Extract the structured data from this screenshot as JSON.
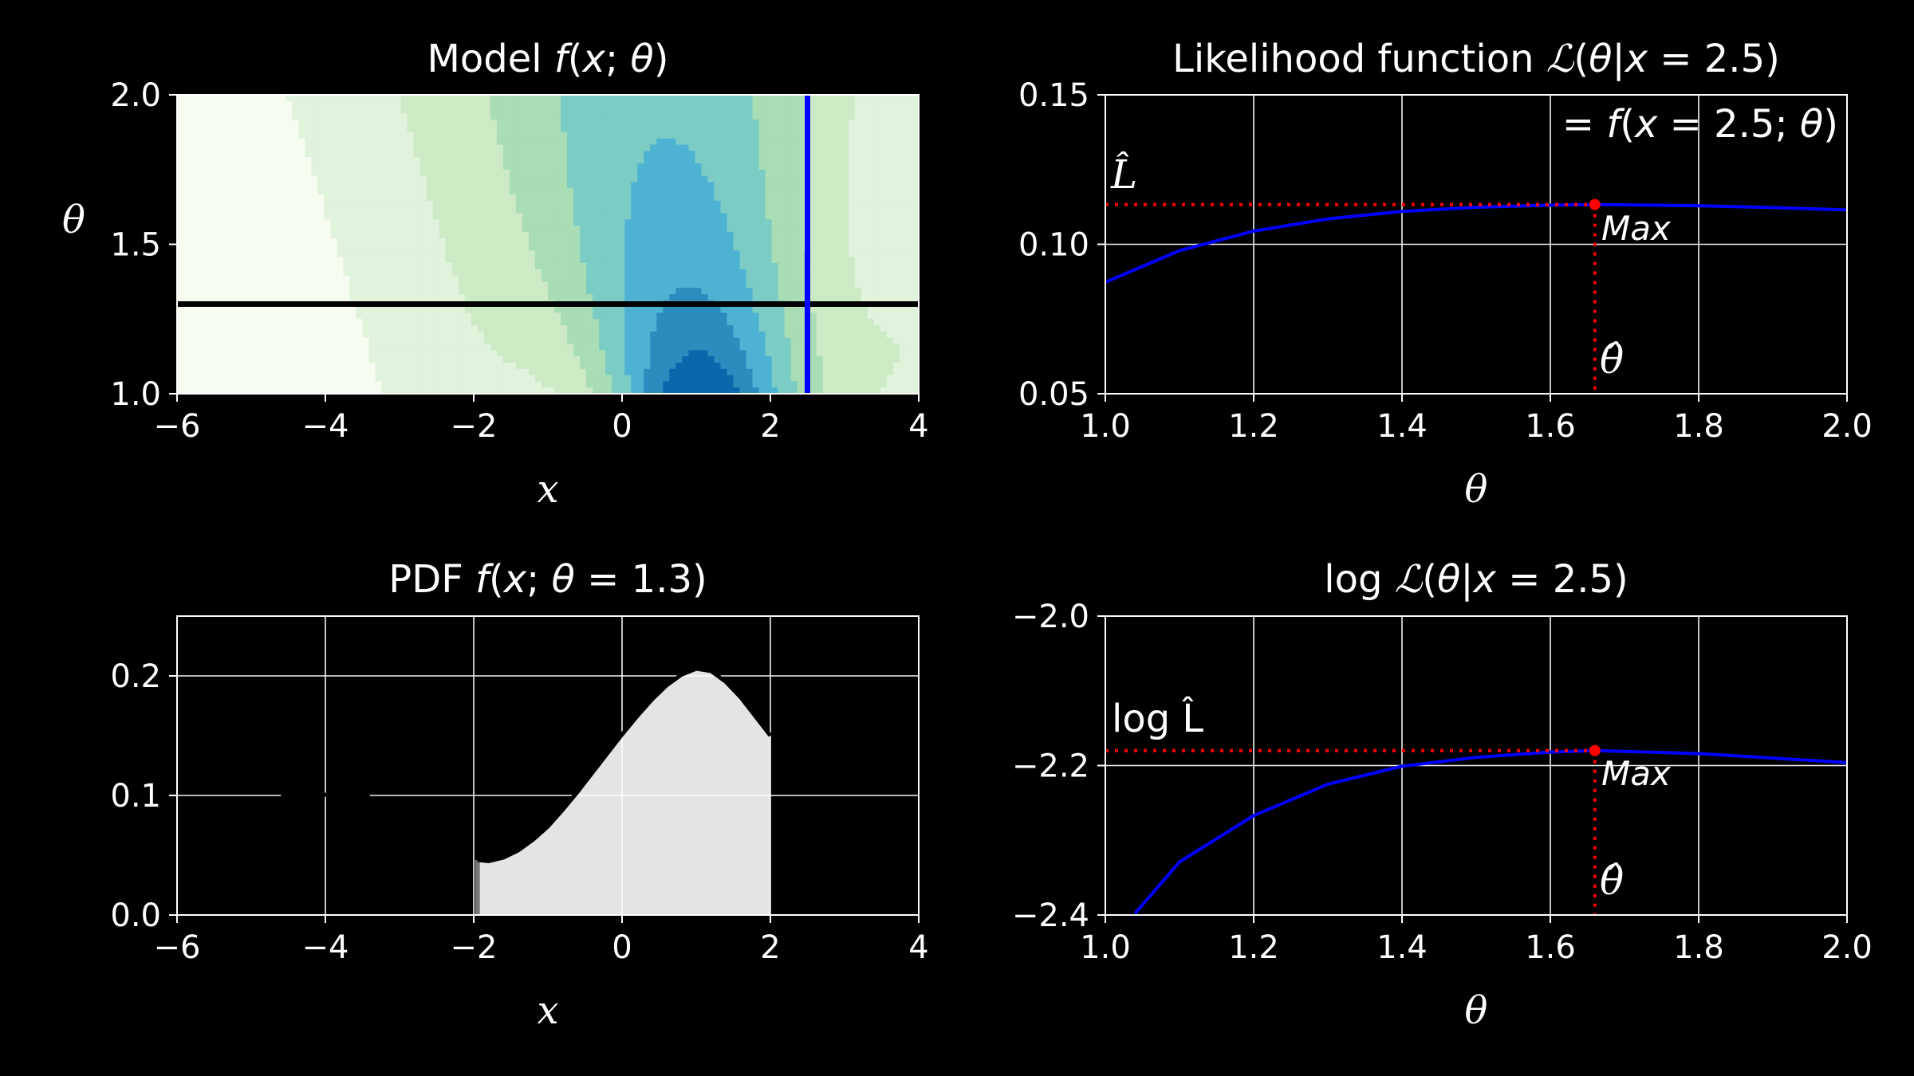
{
  "chart_data": [
    {
      "type": "heatmap",
      "panel": "model",
      "title": "Model f(x; θ)",
      "xlabel": "x",
      "ylabel": "θ",
      "xlim": [
        -6,
        4
      ],
      "ylim": [
        1.0,
        2.0
      ],
      "x_ticks": [
        "−6",
        "−4",
        "−2",
        "0",
        "2",
        "4"
      ],
      "y_ticks": [
        "1.0",
        "1.5",
        "2.0"
      ],
      "horizontal_line_theta": 1.3,
      "vertical_line_x": 2.5,
      "colormap": [
        "#f7fcf0",
        "#e0f3db",
        "#ccebc5",
        "#a8ddb5",
        "#7bccc4",
        "#4eb3d3",
        "#2b8cbe",
        "#0868ac"
      ],
      "grid": false
    },
    {
      "type": "line",
      "panel": "likelihood",
      "title": "Likelihood function ℒ(θ|x = 2.5)",
      "subtitle": "= f(x = 2.5; θ)",
      "xlabel": "θ",
      "xlim": [
        1.0,
        2.0
      ],
      "ylim": [
        0.05,
        0.15
      ],
      "x_ticks": [
        "1.0",
        "1.2",
        "1.4",
        "1.6",
        "1.8",
        "2.0"
      ],
      "y_ticks": [
        "0.05",
        "0.10",
        "0.15"
      ],
      "x": [
        1.0,
        1.1,
        1.2,
        1.3,
        1.4,
        1.5,
        1.6,
        1.66,
        1.7,
        1.8,
        1.9,
        2.0
      ],
      "y": [
        0.0873,
        0.0979,
        0.1044,
        0.1085,
        0.111,
        0.1124,
        0.1131,
        0.1133,
        0.1132,
        0.1129,
        0.1123,
        0.1115
      ],
      "max_point": {
        "x": 1.66,
        "y": 0.1133
      },
      "annotations": {
        "max": "Max",
        "lhat": "L̂",
        "thetahat": "θ̂"
      },
      "grid": true
    },
    {
      "type": "area",
      "panel": "pdf",
      "title": "PDF f(x; θ = 1.3)",
      "xlabel": "x",
      "xlim": [
        -6,
        4
      ],
      "ylim": [
        0,
        0.25
      ],
      "x_ticks": [
        "−6",
        "−4",
        "−2",
        "0",
        "2",
        "4"
      ],
      "y_ticks": [
        "0.0",
        "0.1",
        "0.2"
      ],
      "segments": [
        {
          "x": [
            -4.6,
            -4.5,
            -4.4,
            -4.2,
            -4.0,
            -3.8,
            -3.6,
            -3.4
          ],
          "y": [
            0.1,
            0.1002,
            0.1004,
            0.1006,
            0.1006,
            0.1004,
            0.1002,
            0.1
          ]
        },
        {
          "x": [
            -1.95,
            -1.8,
            -1.6,
            -1.4,
            -1.2,
            -1.0,
            -0.8,
            -0.6,
            -0.4,
            -0.2,
            0.0,
            0.2,
            0.4,
            0.6,
            0.8,
            1.0,
            1.2,
            1.4,
            1.6,
            1.8,
            2.0
          ],
          "y": [
            0.046,
            0.045,
            0.048,
            0.054,
            0.063,
            0.074,
            0.088,
            0.103,
            0.119,
            0.135,
            0.151,
            0.166,
            0.18,
            0.192,
            0.201,
            0.206,
            0.204,
            0.195,
            0.182,
            0.166,
            0.15
          ]
        }
      ],
      "grid": true
    },
    {
      "type": "line",
      "panel": "log-likelihood",
      "title": "log ℒ(θ|x = 2.5)",
      "xlabel": "θ",
      "xlim": [
        1.0,
        2.0
      ],
      "ylim": [
        -2.4,
        -2.0
      ],
      "x_ticks": [
        "1.0",
        "1.2",
        "1.4",
        "1.6",
        "1.8",
        "2.0"
      ],
      "y_ticks": [
        "−2.4",
        "−2.2",
        "−2.0"
      ],
      "x": [
        1.04,
        1.1,
        1.2,
        1.3,
        1.4,
        1.5,
        1.6,
        1.66,
        1.7,
        1.8,
        1.9,
        2.0
      ],
      "y": [
        -2.398,
        -2.329,
        -2.267,
        -2.225,
        -2.201,
        -2.189,
        -2.182,
        -2.18,
        -2.181,
        -2.184,
        -2.19,
        -2.196
      ],
      "max_point": {
        "x": 1.66,
        "y": -2.18
      },
      "annotations": {
        "max": "Max",
        "lhat": "log L̂",
        "thetahat": "θ̂"
      },
      "grid": true
    }
  ],
  "colors": {
    "curve": "#0000ff",
    "marker": "#ff0000",
    "fill": "#e4e4e4",
    "background": "#000000",
    "foreground": "#ffffff"
  }
}
